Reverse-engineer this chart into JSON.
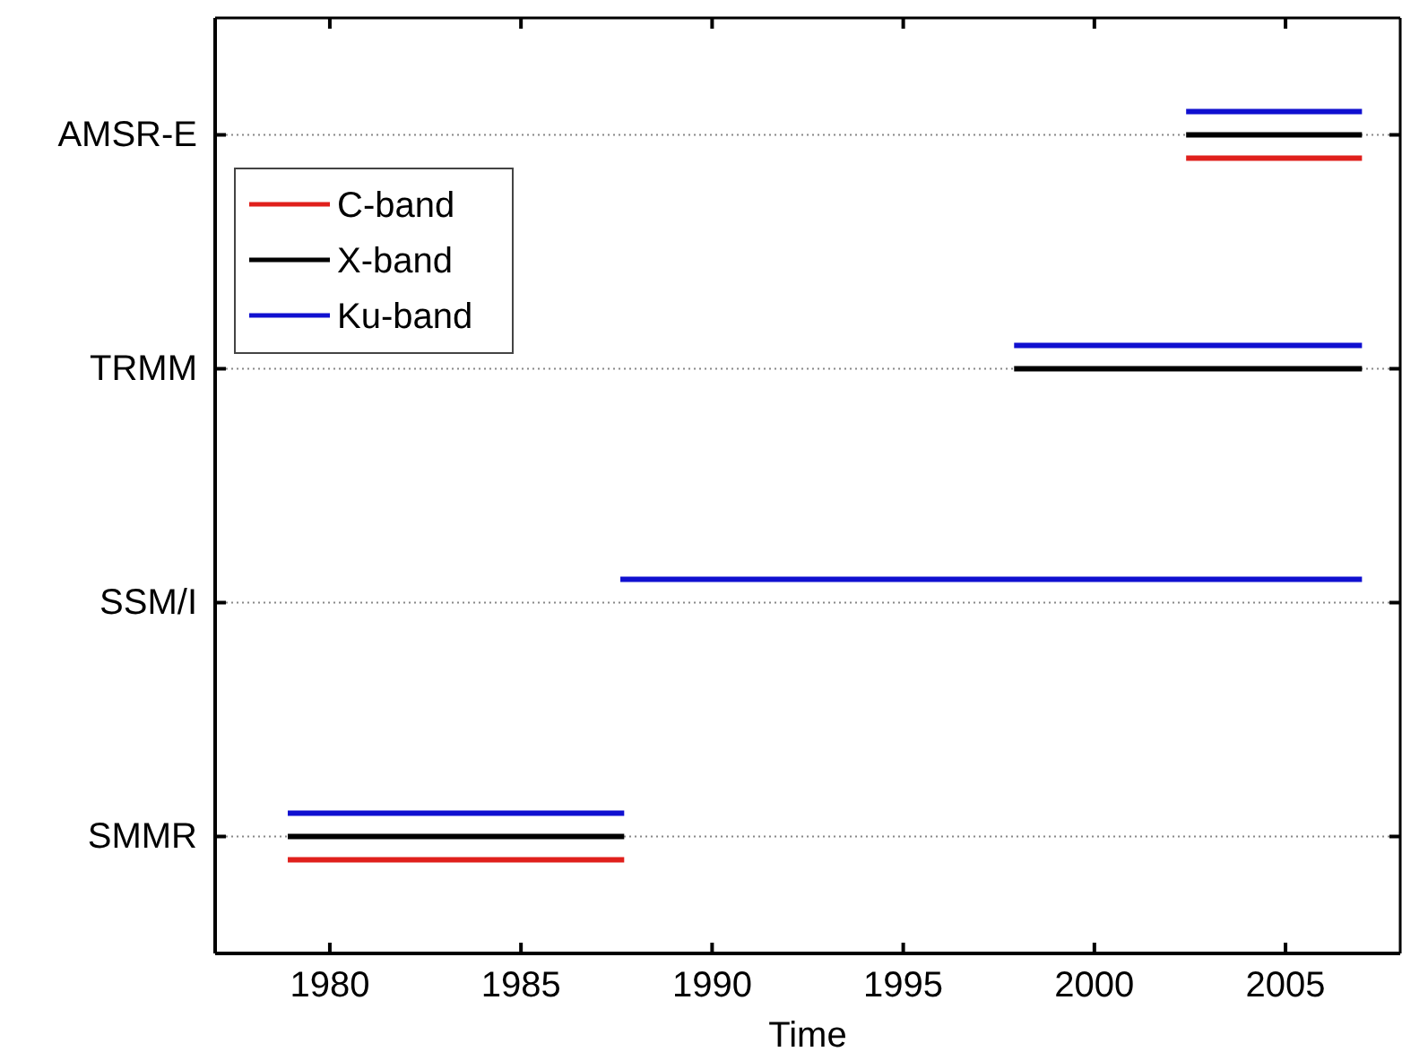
{
  "chart_data": {
    "type": "bar",
    "orientation": "horizontal",
    "xlabel": "Time",
    "categories": [
      "AMSR-E",
      "TRMM",
      "SSM/I",
      "SMMR"
    ],
    "xlim": [
      1977,
      2008
    ],
    "xticks": [
      1980,
      1985,
      1990,
      1995,
      2000,
      2005
    ],
    "grid": "y",
    "legend": "top left",
    "series": [
      {
        "name": "C-band",
        "color": "#e0201c",
        "base": [
          2002.4,
          null,
          null,
          1978.9
        ],
        "values": [
          4.6,
          null,
          null,
          8.8
        ]
      },
      {
        "name": "X-band",
        "color": "#000000",
        "base": [
          2002.4,
          1997.9,
          null,
          1978.9
        ],
        "values": [
          4.6,
          9.1,
          null,
          8.8
        ]
      },
      {
        "name": "Ku-band",
        "color": "#1010d0",
        "base": [
          2002.4,
          1997.9,
          1987.6,
          1978.9
        ],
        "values": [
          4.6,
          9.1,
          19.4,
          8.8
        ]
      }
    ]
  }
}
